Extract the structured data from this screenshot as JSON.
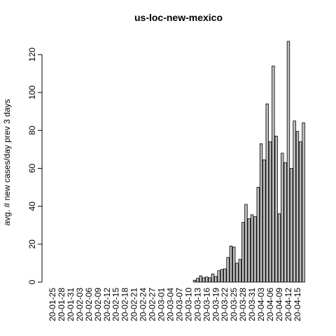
{
  "chart_data": {
    "type": "bar",
    "title": "us-loc-new-mexico",
    "y_label": "avg. # new cases/day prev  3  days",
    "categories": [
      "20-01-25",
      null,
      null,
      "20-01-28",
      null,
      null,
      "20-01-31",
      null,
      null,
      "20-02-03",
      null,
      null,
      "20-02-06",
      null,
      null,
      "20-02-09",
      null,
      null,
      "20-02-12",
      null,
      null,
      "20-02-15",
      null,
      null,
      "20-02-18",
      null,
      null,
      "20-02-21",
      null,
      null,
      "20-02-24",
      null,
      null,
      "20-02-27",
      null,
      null,
      "20-03-01",
      null,
      null,
      "20-03-04",
      null,
      null,
      "20-03-07",
      null,
      null,
      "20-03-10",
      null,
      null,
      "20-03-13",
      null,
      null,
      "20-03-16",
      null,
      null,
      "20-03-19",
      null,
      null,
      "20-03-22",
      null,
      null,
      "20-03-25",
      null,
      null,
      "20-03-28",
      null,
      null,
      "20-03-31",
      null,
      null,
      "20-04-03",
      null,
      null,
      "20-04-06",
      null,
      null,
      "20-04-09",
      null,
      null,
      "20-04-12",
      null,
      null,
      "20-04-15",
      null,
      null
    ],
    "values": [
      0,
      0,
      0,
      0,
      0,
      0,
      0,
      0,
      0,
      0,
      0,
      0,
      0,
      0,
      0,
      0,
      0,
      0,
      0,
      0,
      0,
      0,
      0,
      0,
      0,
      0,
      0,
      0,
      0,
      0,
      0,
      0,
      0,
      0,
      0,
      0,
      0,
      0,
      0,
      0,
      0,
      0,
      0,
      0,
      0,
      0,
      0,
      1,
      2,
      3.3,
      2.3,
      2.7,
      2.3,
      4.3,
      3,
      6,
      6.7,
      7,
      13,
      19,
      18.5,
      10,
      12,
      31.5,
      41,
      33.5,
      35.5,
      34.5,
      50,
      73,
      64.5,
      94,
      74,
      114,
      77,
      36,
      68,
      63,
      127,
      60,
      85,
      79.5,
      74,
      84
    ],
    "color": "#bebebe",
    "ylim": [
      0,
      127
    ],
    "yticks": [
      0,
      20,
      40,
      60,
      80,
      100,
      120
    ]
  }
}
